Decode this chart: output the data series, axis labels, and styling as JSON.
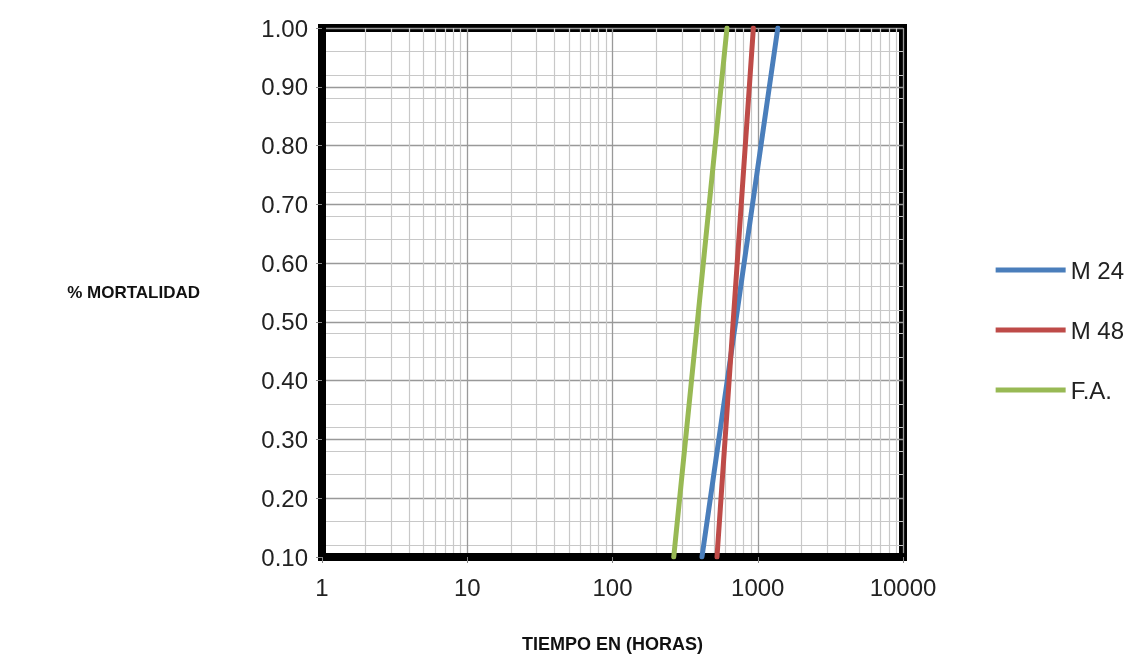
{
  "chart_data": {
    "type": "line",
    "xlabel": "TIEMPO EN (HORAS)",
    "ylabel": "% MORTALIDAD",
    "log": "x",
    "grid": true,
    "legend": "right",
    "marker": "none",
    "line_style": "solid",
    "xlim": [
      1,
      10000
    ],
    "xticks": [
      1,
      10,
      100,
      1000,
      10000
    ],
    "ylim": [
      0.1,
      1.0
    ],
    "yticks": [
      {
        "value": 0.1,
        "label": "0.10"
      },
      {
        "value": 0.2,
        "label": "0.20"
      },
      {
        "value": 0.3,
        "label": "0.30"
      },
      {
        "value": 0.4,
        "label": "0.40"
      },
      {
        "value": 0.5,
        "label": "0.50"
      },
      {
        "value": 0.6,
        "label": "0.60"
      },
      {
        "value": 0.7,
        "label": "0.70"
      },
      {
        "value": 0.8,
        "label": "0.80"
      },
      {
        "value": 0.9,
        "label": "0.90"
      },
      {
        "value": 1.0,
        "label": "1.00"
      }
    ],
    "series": [
      {
        "name": "M 24",
        "color": "#4a7ebb",
        "x": [
          413,
          1374
        ],
        "values": [
          0.1,
          1.0
        ]
      },
      {
        "name": "M 48",
        "color": "#be4b48",
        "x": [
          524,
          933
        ],
        "values": [
          0.1,
          1.0
        ]
      },
      {
        "name": "F.A.",
        "color": "#98b954",
        "x": [
          264,
          614
        ],
        "values": [
          0.1,
          1.0
        ]
      }
    ]
  }
}
